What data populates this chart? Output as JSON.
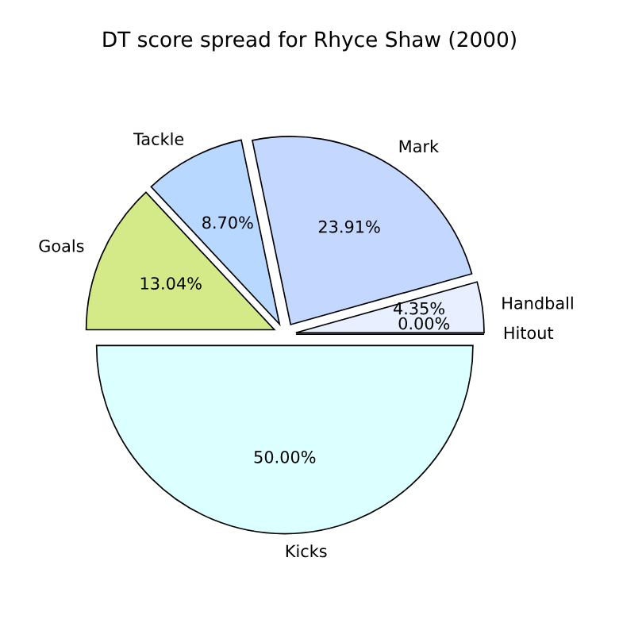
{
  "chart_data": {
    "type": "pie",
    "title": "DT score spread for Rhyce Shaw (2000)",
    "categories": [
      "Kicks",
      "Hitout",
      "Handball",
      "Mark",
      "Tackle",
      "Goals"
    ],
    "values": [
      50.0,
      0.0,
      4.35,
      23.91,
      8.7,
      13.04
    ],
    "value_labels": [
      "50.00%",
      "0.00%",
      "4.35%",
      "23.91%",
      "8.70%",
      "13.04%"
    ],
    "colors": [
      "#dcffff",
      "#e0ecff",
      "#e8f0ff",
      "#c4d8ff",
      "#b8d8ff",
      "#d4ea88"
    ]
  }
}
